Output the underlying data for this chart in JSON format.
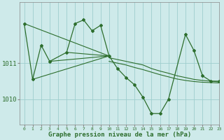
{
  "xlabel": "Graphe pression niveau de la mer (hPa)",
  "background_color": "#ceeaea",
  "grid_color": "#9ecece",
  "line_color": "#2d6e2d",
  "xlim": [
    -0.5,
    23
  ],
  "ylim": [
    1009.3,
    1012.7
  ],
  "yticks": [
    1010,
    1011
  ],
  "xticks": [
    0,
    1,
    2,
    3,
    4,
    5,
    6,
    7,
    8,
    9,
    10,
    11,
    12,
    13,
    14,
    15,
    16,
    17,
    18,
    19,
    20,
    21,
    22,
    23
  ],
  "main_line": {
    "x": [
      0,
      1,
      2,
      3,
      5,
      6,
      7,
      8,
      9,
      10,
      11,
      12,
      13,
      14,
      15,
      16,
      17,
      19,
      20,
      21,
      22,
      23
    ],
    "y": [
      1012.1,
      1010.55,
      1011.5,
      1011.05,
      1011.3,
      1012.1,
      1012.2,
      1011.9,
      1012.05,
      1011.2,
      1010.85,
      1010.6,
      1010.4,
      1010.05,
      1009.6,
      1009.6,
      1010.0,
      1011.8,
      1011.35,
      1010.65,
      1010.5,
      1010.5
    ]
  },
  "fan_lines": [
    {
      "x": [
        0,
        10
      ],
      "y": [
        1012.1,
        1011.2
      ]
    },
    {
      "x": [
        1,
        10
      ],
      "y": [
        1010.55,
        1011.2
      ]
    },
    {
      "x": [
        3,
        10
      ],
      "y": [
        1011.05,
        1011.2
      ]
    },
    {
      "x": [
        5,
        10
      ],
      "y": [
        1011.3,
        1011.2
      ]
    }
  ],
  "smooth_lines": [
    {
      "x": [
        10,
        11,
        12,
        13,
        14,
        15,
        16,
        17,
        18,
        19,
        20,
        21,
        22,
        23
      ],
      "y": [
        1011.15,
        1011.1,
        1011.05,
        1011.0,
        1010.95,
        1010.85,
        1010.78,
        1010.72,
        1010.65,
        1010.6,
        1010.55,
        1010.52,
        1010.5,
        1010.48
      ]
    },
    {
      "x": [
        10,
        11,
        12,
        13,
        14,
        15,
        16,
        17,
        18,
        19,
        20,
        21,
        22,
        23
      ],
      "y": [
        1011.05,
        1011.0,
        1010.95,
        1010.88,
        1010.82,
        1010.75,
        1010.68,
        1010.62,
        1010.56,
        1010.52,
        1010.49,
        1010.47,
        1010.46,
        1010.45
      ]
    }
  ]
}
